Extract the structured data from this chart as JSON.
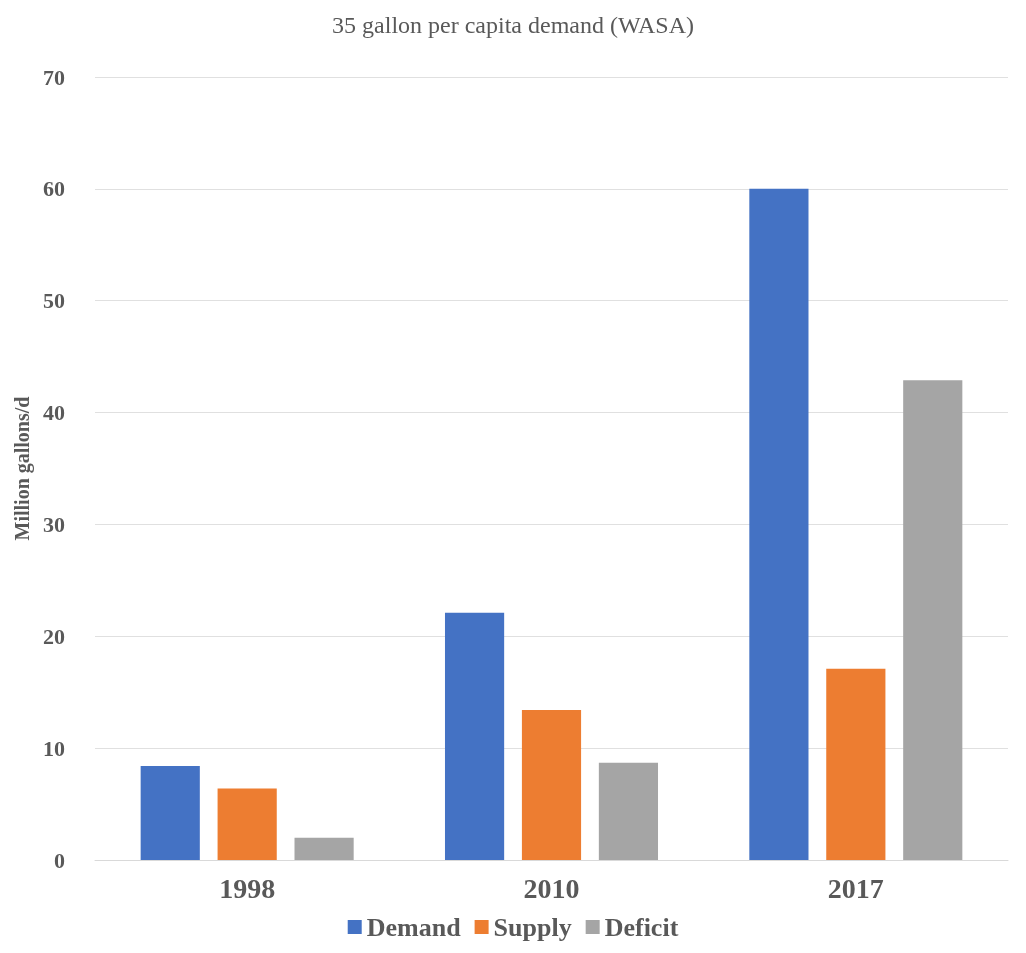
{
  "chart_data": {
    "type": "bar",
    "title": "35 gallon per capita demand (WASA)",
    "ylabel": "Million gallons/d",
    "categories": [
      "1998",
      "2010",
      "2017"
    ],
    "series": [
      {
        "name": "Demand",
        "color": "#4472c4",
        "values": [
          8.4,
          22.1,
          60.0
        ]
      },
      {
        "name": "Supply",
        "color": "#ed7d31",
        "values": [
          6.4,
          13.4,
          17.1
        ]
      },
      {
        "name": "Deficit",
        "color": "#a5a5a5",
        "values": [
          2.0,
          8.7,
          42.9
        ]
      }
    ],
    "ylim": [
      0,
      70
    ],
    "yticks": [
      0,
      10,
      20,
      30,
      40,
      50,
      60,
      70
    ],
    "grid": "y",
    "legend": "bottom"
  }
}
